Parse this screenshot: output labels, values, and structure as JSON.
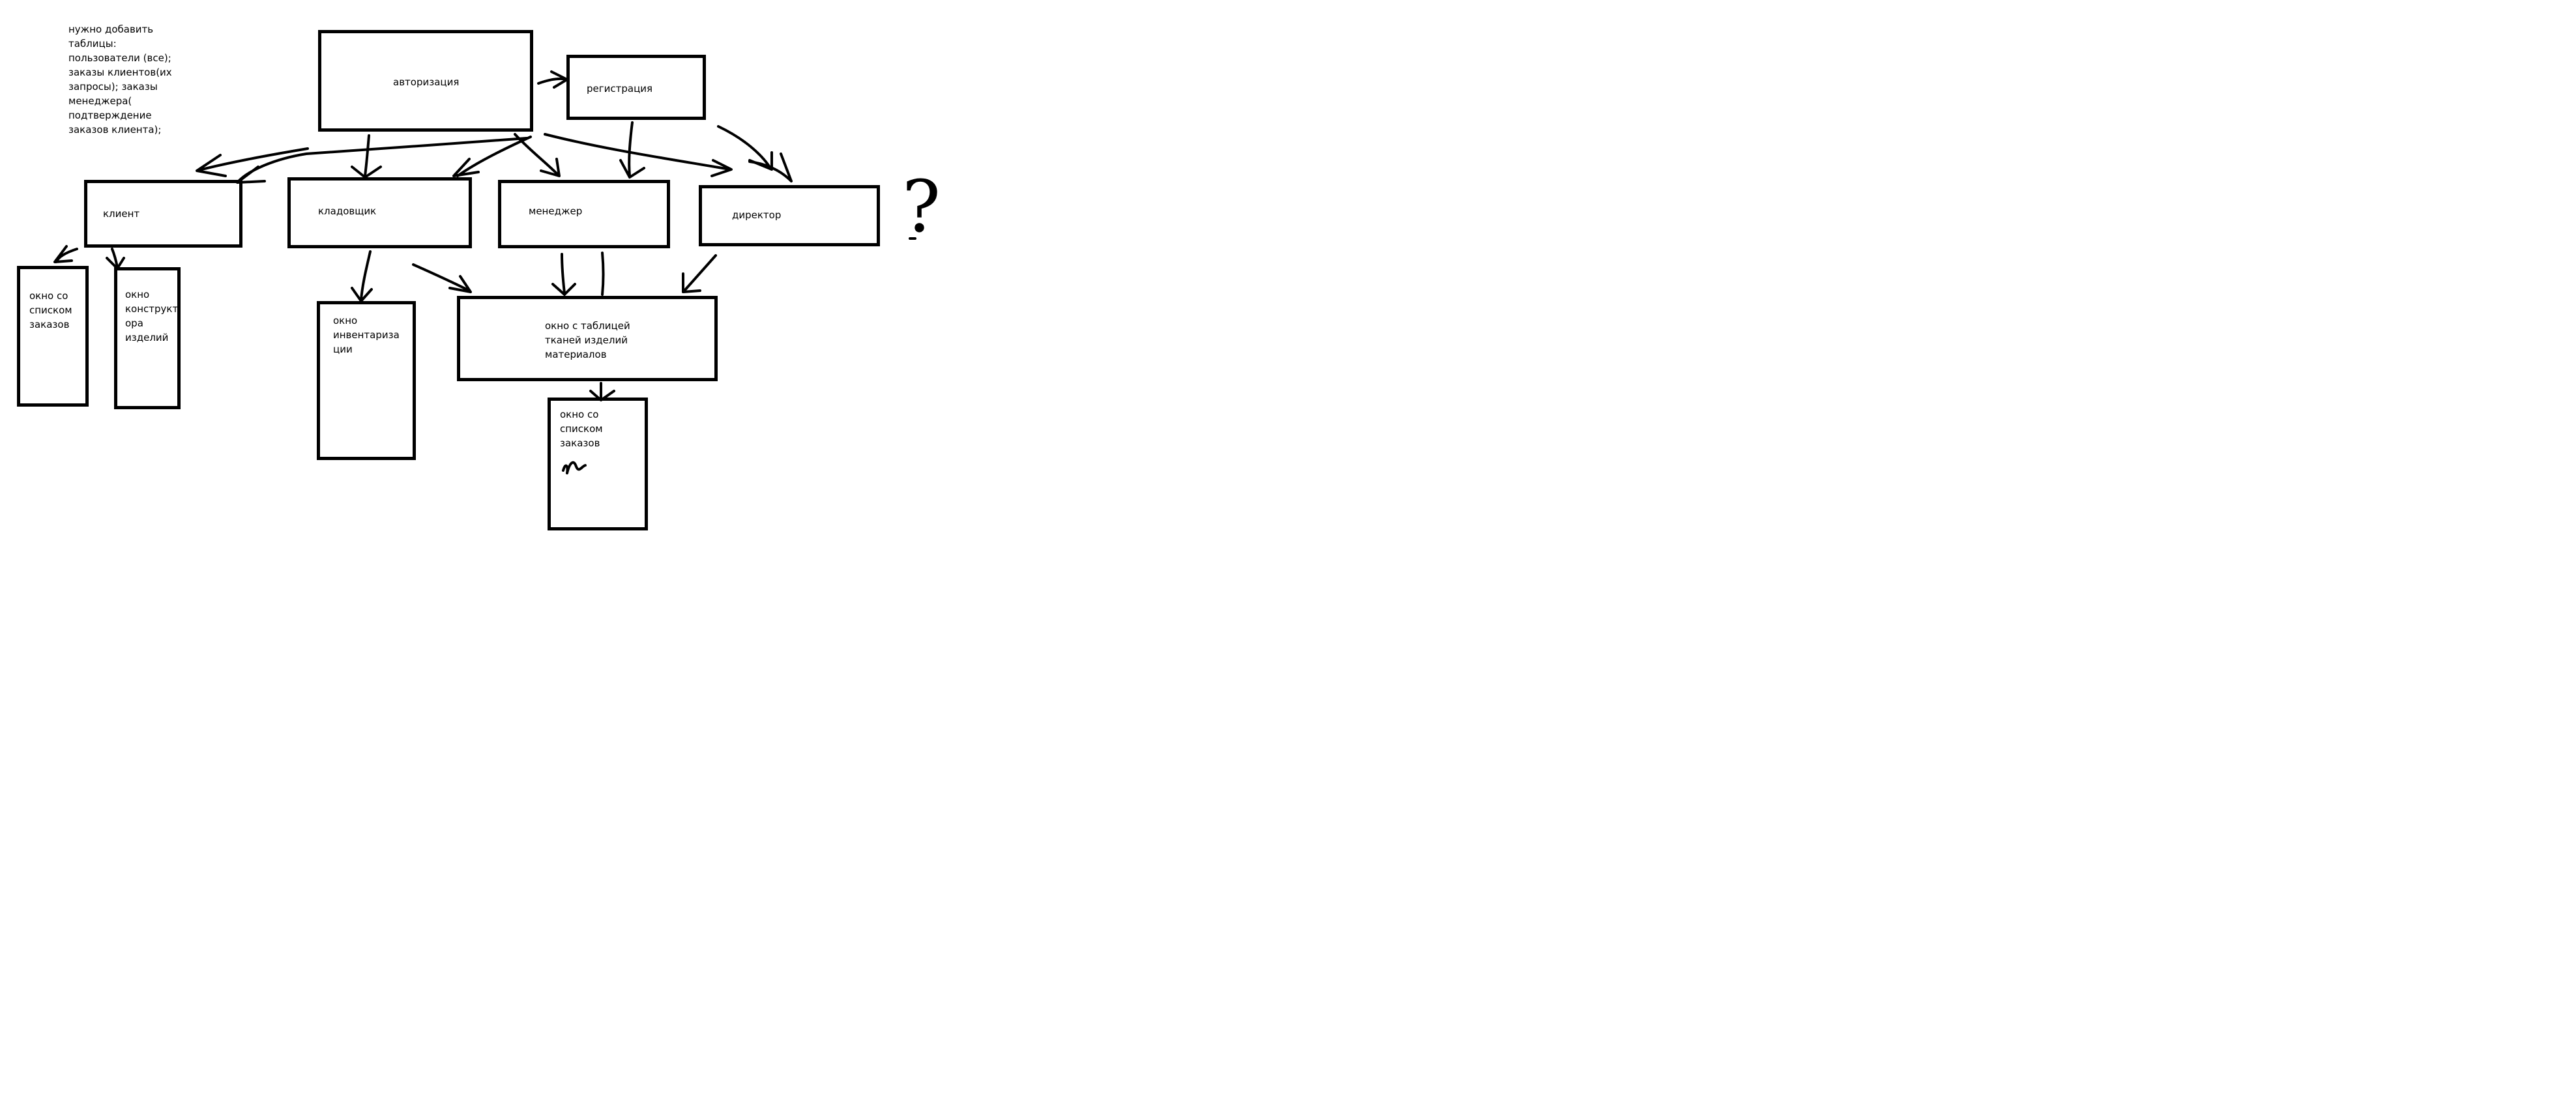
{
  "note": "нужно добавить\nтаблицы:\nпользователи (все);\nзаказы клиентов(их\nзапросы); заказы\nменеджера(\nподтверждение\nзаказов клиента);",
  "nodes": {
    "auth": "авторизация",
    "registration": "регистрация",
    "client": "клиент",
    "storekeeper": "кладовщик",
    "manager": "менеджер",
    "director": "директор",
    "client_orders_window": "окно со\nсписком\nзаказов",
    "constructor_window": "окно\nконструкт\nора\nизделий",
    "inventory_window": "окно\nинвентариза\nции",
    "materials_window": "окно с таблицей\nтканей изделий\nматериалов",
    "manager_orders_window": "окно со\nсписком\nзаказов"
  },
  "question_mark": "?"
}
